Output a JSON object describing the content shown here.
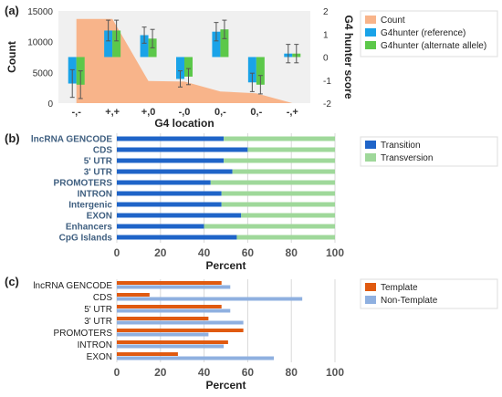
{
  "panels": {
    "a": "(a)",
    "b": "(b)",
    "c": "(c)"
  },
  "colors": {
    "count": "#f8b48a",
    "ref": "#1aa3e8",
    "alt": "#5cc84a",
    "transition": "#1f64c8",
    "transversion": "#9fd89a",
    "template": "#e05a10",
    "nontemplate": "#8fb0e0",
    "frame": "#f0f0f0"
  },
  "chart_data": [
    {
      "type": "area",
      "xlabel": "G4 location",
      "ylabel": "Count",
      "y2label": "G4 hunter score",
      "categories": [
        "-,-",
        "+,+",
        "+,0",
        "-,0",
        "0,-",
        "0,-",
        "-,+"
      ],
      "ylim": [
        0,
        15000
      ],
      "yticks": [
        "0",
        "5000",
        "10000",
        "15000"
      ],
      "y2lim": [
        -2,
        2
      ],
      "y2ticks": [
        "-2",
        "-1",
        "0",
        "1",
        "2"
      ],
      "series": [
        {
          "name": "Count",
          "kind": "area",
          "values": [
            13700,
            13700,
            3600,
            3500,
            1900,
            1600,
            0
          ]
        },
        {
          "name": "G4hunter (reference)",
          "kind": "bar",
          "values": [
            -1.15,
            1.15,
            0.95,
            -0.95,
            1.1,
            -1.1,
            0.15
          ],
          "errors": [
            0.6,
            0.45,
            0.35,
            0.35,
            0.4,
            0.4,
            0.4
          ]
        },
        {
          "name": "G4hunter (alternate allele)",
          "kind": "bar",
          "values": [
            -1.2,
            1.15,
            0.8,
            -0.85,
            1.2,
            -1.2,
            0.15
          ],
          "errors": [
            0.6,
            0.45,
            0.4,
            0.35,
            0.4,
            0.4,
            0.4
          ]
        }
      ],
      "legend": [
        "Count",
        "G4hunter (reference)",
        "G4hunter (alternate allele)"
      ]
    },
    {
      "type": "bar",
      "orientation": "horizontal",
      "stacked": true,
      "xlabel": "Percent",
      "xlim": [
        0,
        100
      ],
      "xticks": [
        "0",
        "20",
        "40",
        "60",
        "80",
        "100"
      ],
      "categories": [
        "lncRNA GENCODE",
        "CDS",
        "5' UTR",
        "3' UTR",
        "PROMOTERS",
        "INTRON",
        "Intergenic",
        "EXON",
        "Enhancers",
        "CpG Islands"
      ],
      "series": [
        {
          "name": "Transition",
          "values": [
            49,
            60,
            49,
            53,
            43,
            48,
            48,
            57,
            40,
            55
          ]
        },
        {
          "name": "Transversion",
          "values": [
            51,
            40,
            51,
            47,
            57,
            52,
            52,
            43,
            60,
            45
          ]
        }
      ],
      "legend": [
        "Transition",
        "Transversion"
      ]
    },
    {
      "type": "bar",
      "orientation": "horizontal",
      "xlabel": "Percent",
      "xlim": [
        0,
        100
      ],
      "xticks": [
        "0",
        "20",
        "40",
        "60",
        "80",
        "100"
      ],
      "categories": [
        "lncRNA GENCODE",
        "CDS",
        "5' UTR",
        "3' UTR",
        "PROMOTERS",
        "INTRON",
        "EXON"
      ],
      "series": [
        {
          "name": "Template",
          "values": [
            48,
            15,
            48,
            42,
            58,
            51,
            28
          ]
        },
        {
          "name": "Non-Template",
          "values": [
            52,
            85,
            52,
            58,
            42,
            49,
            72
          ]
        }
      ],
      "legend": [
        "Template",
        "Non-Template"
      ]
    }
  ]
}
